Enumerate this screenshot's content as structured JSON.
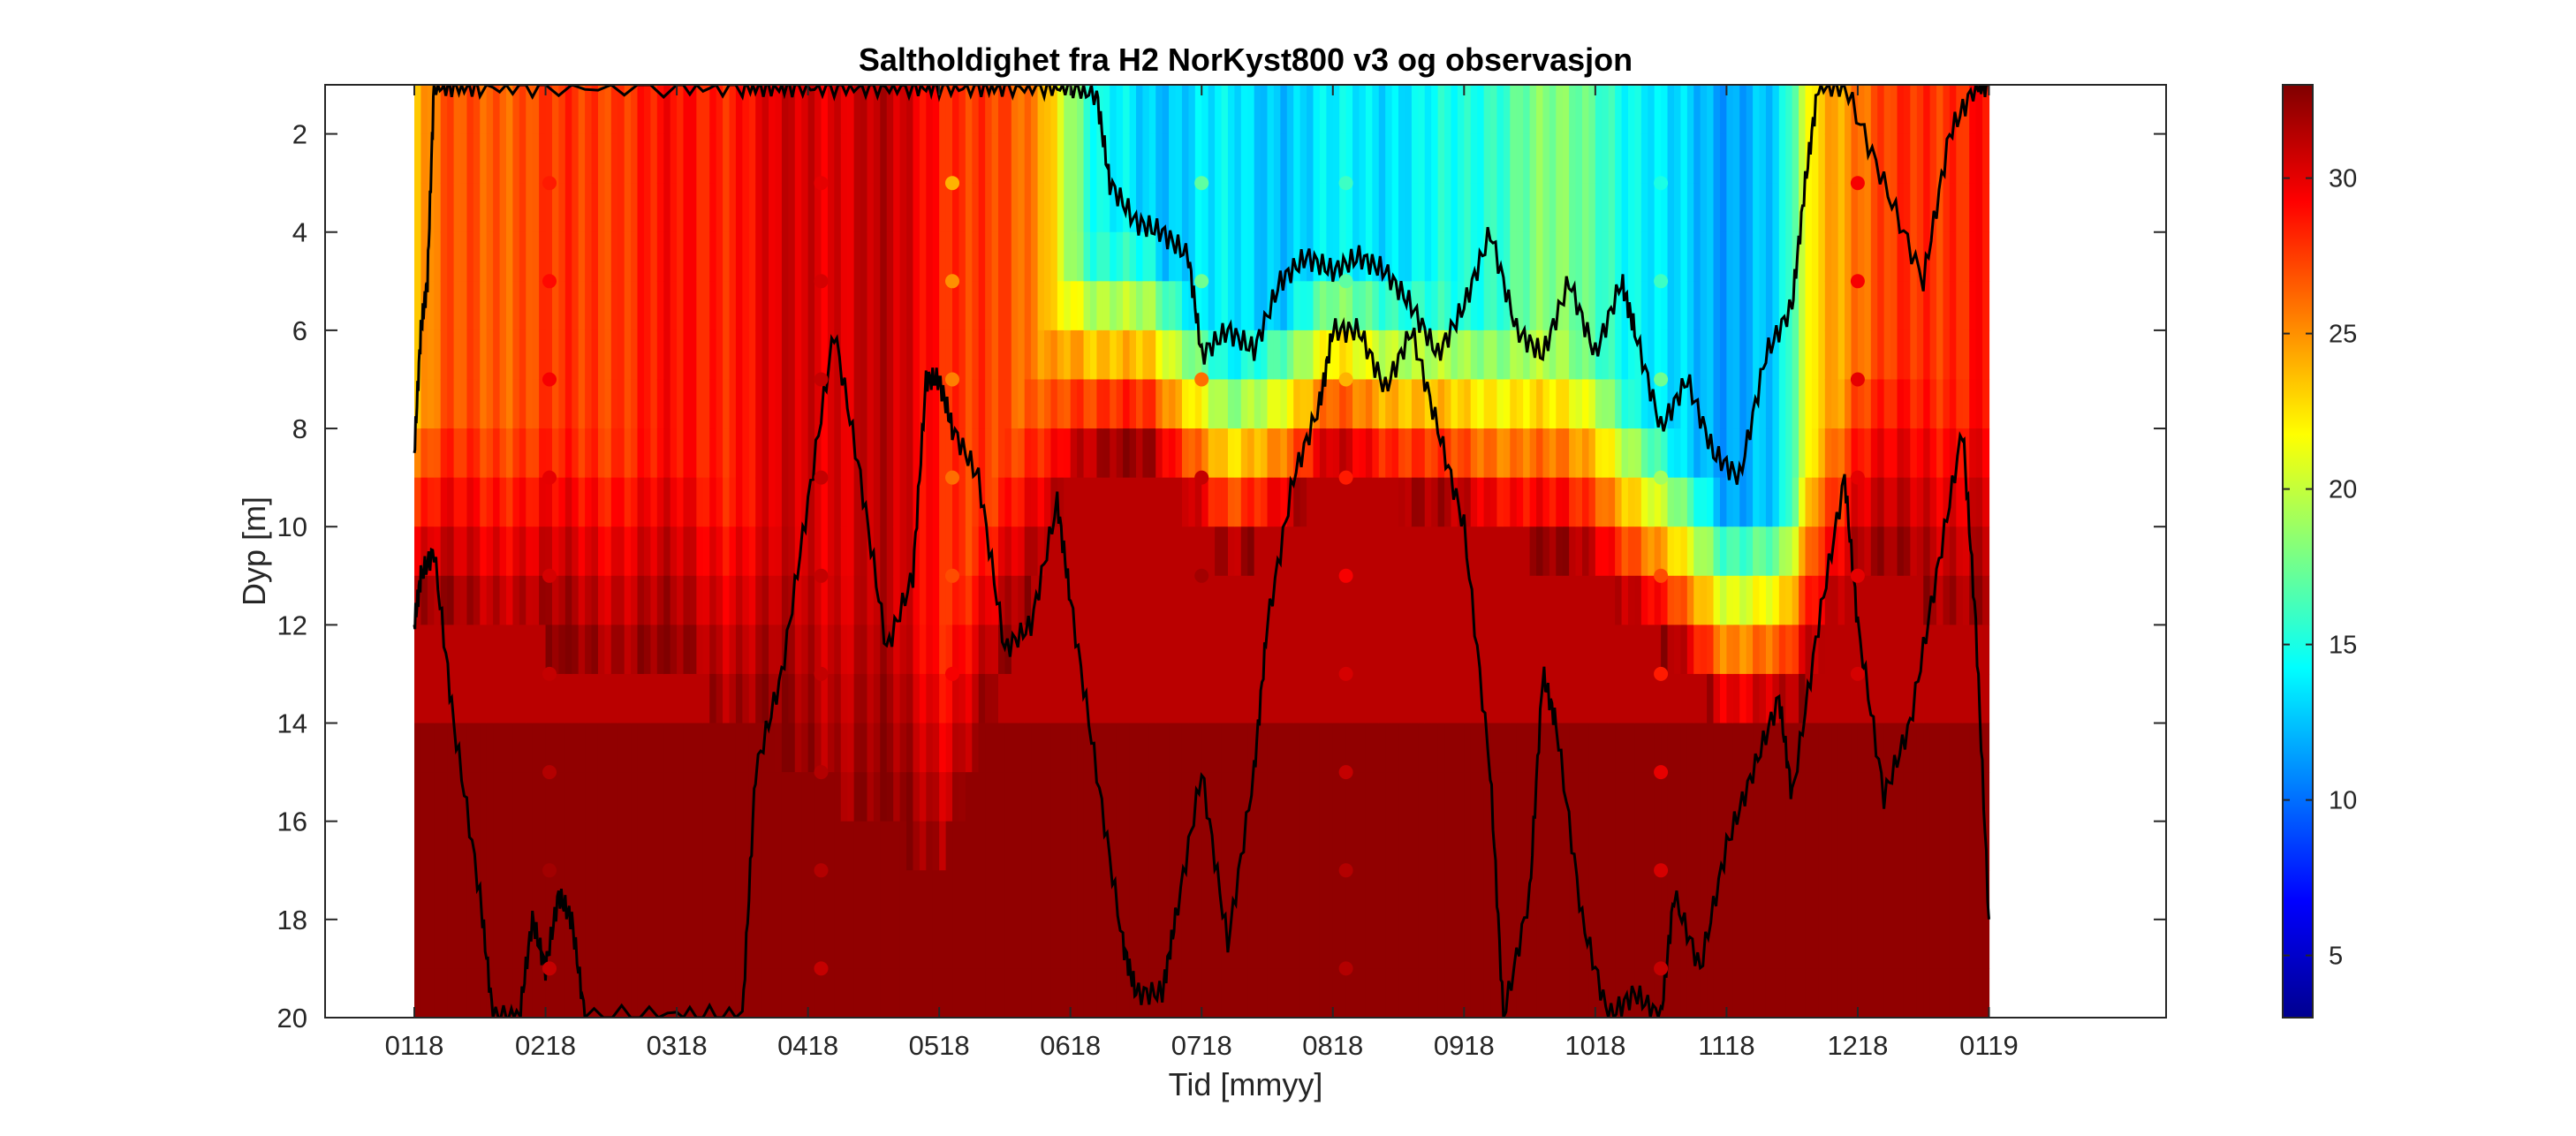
{
  "chart_data": {
    "type": "heatmap",
    "title": "Saltholdighet fra H2 NorKyst800 v3 og observasjon",
    "xlabel": "Tid [mmyy]",
    "ylabel": "Dyp [m]",
    "x_ticks": [
      "0118",
      "0218",
      "0318",
      "0418",
      "0518",
      "0618",
      "0718",
      "0818",
      "0918",
      "1018",
      "1118",
      "1218",
      "0119"
    ],
    "x_range_months": [
      -0.68,
      13.35
    ],
    "data_start_month": 0,
    "data_end_month": 12,
    "ylim": [
      1,
      20
    ],
    "y_reversed": true,
    "y_ticks": [
      2,
      4,
      6,
      8,
      10,
      12,
      14,
      16,
      18,
      20
    ],
    "colormap": "jet",
    "clim": [
      3,
      33
    ],
    "colorbar_ticks": [
      5,
      10,
      15,
      20,
      25,
      30
    ],
    "model_surface_salinity_by_month": [
      {
        "month": 0.0,
        "s": 23
      },
      {
        "month": 0.2,
        "s": 26
      },
      {
        "month": 0.5,
        "s": 27
      },
      {
        "month": 1.0,
        "s": 27
      },
      {
        "month": 1.5,
        "s": 28
      },
      {
        "month": 2.0,
        "s": 28.5
      },
      {
        "month": 2.5,
        "s": 29
      },
      {
        "month": 3.0,
        "s": 30.5
      },
      {
        "month": 3.5,
        "s": 31
      },
      {
        "month": 4.0,
        "s": 29
      },
      {
        "month": 4.4,
        "s": 27
      },
      {
        "month": 4.8,
        "s": 25
      },
      {
        "month": 5.2,
        "s": 14
      },
      {
        "month": 5.6,
        "s": 13
      },
      {
        "month": 6.0,
        "s": 13.5
      },
      {
        "month": 6.5,
        "s": 13
      },
      {
        "month": 7.0,
        "s": 13.5
      },
      {
        "month": 7.5,
        "s": 14
      },
      {
        "month": 8.0,
        "s": 14.5
      },
      {
        "month": 8.5,
        "s": 18
      },
      {
        "month": 9.0,
        "s": 17
      },
      {
        "month": 9.5,
        "s": 13
      },
      {
        "month": 10.0,
        "s": 12
      },
      {
        "month": 10.4,
        "s": 12.5
      },
      {
        "month": 10.7,
        "s": 24
      },
      {
        "month": 11.0,
        "s": 26
      },
      {
        "month": 11.5,
        "s": 28
      },
      {
        "month": 12.0,
        "s": 29
      }
    ],
    "model_bottom_salinity": 32.5,
    "model_salinity_gradient_depth_m": [
      {
        "month": 0.0,
        "d": 9
      },
      {
        "month": 2.0,
        "d": 10
      },
      {
        "month": 4.0,
        "d": 14
      },
      {
        "month": 5.0,
        "d": 6
      },
      {
        "month": 5.6,
        "d": 5.5
      },
      {
        "month": 6.2,
        "d": 8
      },
      {
        "month": 7.0,
        "d": 6
      },
      {
        "month": 8.0,
        "d": 7
      },
      {
        "month": 9.0,
        "d": 8
      },
      {
        "month": 10.0,
        "d": 11
      },
      {
        "month": 10.5,
        "d": 11
      },
      {
        "month": 11.0,
        "d": 8
      },
      {
        "month": 12.0,
        "d": 9
      }
    ],
    "observations": [
      {
        "month": 1.03,
        "depth": 3,
        "salinity": 28.5
      },
      {
        "month": 1.03,
        "depth": 5,
        "salinity": 29
      },
      {
        "month": 1.03,
        "depth": 7,
        "salinity": 29.5
      },
      {
        "month": 1.03,
        "depth": 9,
        "salinity": 30
      },
      {
        "month": 1.03,
        "depth": 11,
        "salinity": 30.5
      },
      {
        "month": 1.03,
        "depth": 13,
        "salinity": 31
      },
      {
        "month": 1.03,
        "depth": 15,
        "salinity": 31.5
      },
      {
        "month": 1.03,
        "depth": 17,
        "salinity": 32
      },
      {
        "month": 1.03,
        "depth": 19,
        "salinity": 31
      },
      {
        "month": 3.1,
        "depth": 3,
        "salinity": 30
      },
      {
        "month": 3.1,
        "depth": 5,
        "salinity": 30.5
      },
      {
        "month": 3.1,
        "depth": 7,
        "salinity": 31
      },
      {
        "month": 3.1,
        "depth": 9,
        "salinity": 31
      },
      {
        "month": 3.1,
        "depth": 11,
        "salinity": 31
      },
      {
        "month": 3.1,
        "depth": 13,
        "salinity": 31
      },
      {
        "month": 3.1,
        "depth": 15,
        "salinity": 31.5
      },
      {
        "month": 3.1,
        "depth": 17,
        "salinity": 31.5
      },
      {
        "month": 3.1,
        "depth": 19,
        "salinity": 31
      },
      {
        "month": 4.1,
        "depth": 3,
        "salinity": 24
      },
      {
        "month": 4.1,
        "depth": 5,
        "salinity": 25
      },
      {
        "month": 4.1,
        "depth": 7,
        "salinity": 25.5
      },
      {
        "month": 4.1,
        "depth": 9,
        "salinity": 26
      },
      {
        "month": 4.1,
        "depth": 11,
        "salinity": 27
      },
      {
        "month": 4.1,
        "depth": 13,
        "salinity": 29.5
      },
      {
        "month": 6.0,
        "depth": 3,
        "salinity": 17
      },
      {
        "month": 6.0,
        "depth": 5,
        "salinity": 17.5
      },
      {
        "month": 6.0,
        "depth": 7,
        "salinity": 26
      },
      {
        "month": 6.0,
        "depth": 9,
        "salinity": 31
      },
      {
        "month": 6.0,
        "depth": 11,
        "salinity": 32
      },
      {
        "month": 7.1,
        "depth": 3,
        "salinity": 16
      },
      {
        "month": 7.1,
        "depth": 5,
        "salinity": 17
      },
      {
        "month": 7.1,
        "depth": 7,
        "salinity": 24
      },
      {
        "month": 7.1,
        "depth": 9,
        "salinity": 28.5
      },
      {
        "month": 7.1,
        "depth": 11,
        "salinity": 29.5
      },
      {
        "month": 7.1,
        "depth": 13,
        "salinity": 30.5
      },
      {
        "month": 7.1,
        "depth": 15,
        "salinity": 31
      },
      {
        "month": 7.1,
        "depth": 17,
        "salinity": 31.5
      },
      {
        "month": 7.1,
        "depth": 19,
        "salinity": 31.5
      },
      {
        "month": 9.5,
        "depth": 3,
        "salinity": 15
      },
      {
        "month": 9.5,
        "depth": 5,
        "salinity": 16
      },
      {
        "month": 9.5,
        "depth": 7,
        "salinity": 17.5
      },
      {
        "month": 9.5,
        "depth": 9,
        "salinity": 19
      },
      {
        "month": 9.5,
        "depth": 11,
        "salinity": 27
      },
      {
        "month": 9.5,
        "depth": 13,
        "salinity": 28.5
      },
      {
        "month": 9.5,
        "depth": 15,
        "salinity": 30
      },
      {
        "month": 9.5,
        "depth": 17,
        "salinity": 30.5
      },
      {
        "month": 9.5,
        "depth": 19,
        "salinity": 31
      },
      {
        "month": 11.0,
        "depth": 3,
        "salinity": 29.5
      },
      {
        "month": 11.0,
        "depth": 5,
        "salinity": 29.5
      },
      {
        "month": 11.0,
        "depth": 7,
        "salinity": 30
      },
      {
        "month": 11.0,
        "depth": 9,
        "salinity": 30
      },
      {
        "month": 11.0,
        "depth": 11,
        "salinity": 30
      },
      {
        "month": 11.0,
        "depth": 13,
        "salinity": 30.5
      }
    ],
    "black_contour_lines": [
      {
        "name": "upper-contour",
        "points": [
          [
            0.0,
            8.5
          ],
          [
            0.05,
            6
          ],
          [
            0.1,
            5
          ],
          [
            0.15,
            1
          ],
          [
            0.3,
            1
          ],
          [
            0.5,
            1
          ],
          [
            1.0,
            1
          ],
          [
            2.0,
            1
          ],
          [
            2.5,
            1
          ],
          [
            2.7,
            1
          ],
          [
            2.9,
            1
          ],
          [
            3.2,
            1
          ],
          [
            3.5,
            1
          ],
          [
            3.8,
            1
          ],
          [
            4.0,
            1
          ],
          [
            4.3,
            1
          ],
          [
            4.5,
            1
          ],
          [
            4.8,
            1
          ],
          [
            5.0,
            1
          ],
          [
            5.2,
            1.2
          ],
          [
            5.3,
            3
          ],
          [
            5.5,
            3.8
          ],
          [
            5.7,
            4
          ],
          [
            5.9,
            4.5
          ],
          [
            6.0,
            6.5
          ],
          [
            6.2,
            6
          ],
          [
            6.4,
            6.4
          ],
          [
            6.6,
            5
          ],
          [
            6.8,
            4.5
          ],
          [
            7.0,
            4.8
          ],
          [
            7.2,
            4.5
          ],
          [
            7.4,
            4.8
          ],
          [
            7.6,
            5.5
          ],
          [
            7.8,
            6.5
          ],
          [
            8.0,
            5.5
          ],
          [
            8.2,
            4
          ],
          [
            8.4,
            6
          ],
          [
            8.6,
            6.5
          ],
          [
            8.8,
            5
          ],
          [
            9.0,
            6.5
          ],
          [
            9.2,
            5
          ],
          [
            9.3,
            6
          ],
          [
            9.5,
            8
          ],
          [
            9.7,
            7
          ],
          [
            9.9,
            8.5
          ],
          [
            10.1,
            9
          ],
          [
            10.3,
            6.5
          ],
          [
            10.5,
            5.5
          ],
          [
            10.6,
            3
          ],
          [
            10.7,
            1
          ],
          [
            10.9,
            1
          ],
          [
            11.2,
            3
          ],
          [
            11.5,
            5
          ],
          [
            11.7,
            2
          ],
          [
            11.9,
            1
          ],
          [
            12.0,
            1
          ]
        ]
      },
      {
        "name": "lower-contour",
        "points": [
          [
            0.0,
            12
          ],
          [
            0.05,
            11
          ],
          [
            0.15,
            10.5
          ],
          [
            0.3,
            14
          ],
          [
            0.5,
            17.5
          ],
          [
            0.6,
            20
          ],
          [
            0.8,
            20
          ],
          [
            0.9,
            18
          ],
          [
            1.0,
            19
          ],
          [
            1.1,
            17.5
          ],
          [
            1.2,
            18
          ],
          [
            1.3,
            20
          ],
          [
            2.0,
            20
          ],
          [
            2.5,
            20
          ],
          [
            2.6,
            15
          ],
          [
            2.8,
            13
          ],
          [
            3.0,
            9.5
          ],
          [
            3.2,
            6
          ],
          [
            3.4,
            9
          ],
          [
            3.6,
            12.5
          ],
          [
            3.8,
            11
          ],
          [
            3.9,
            7
          ],
          [
            4.0,
            7
          ],
          [
            4.1,
            8
          ],
          [
            4.3,
            9
          ],
          [
            4.5,
            12.5
          ],
          [
            4.7,
            12
          ],
          [
            4.9,
            9.5
          ],
          [
            5.0,
            11.5
          ],
          [
            5.2,
            15
          ],
          [
            5.4,
            18.5
          ],
          [
            5.5,
            19.5
          ],
          [
            5.7,
            19.5
          ],
          [
            5.8,
            18
          ],
          [
            6.0,
            15
          ],
          [
            6.2,
            18.5
          ],
          [
            6.4,
            15
          ],
          [
            6.5,
            12
          ],
          [
            6.7,
            9
          ],
          [
            6.9,
            7.5
          ],
          [
            7.0,
            6
          ],
          [
            7.2,
            6
          ],
          [
            7.4,
            7.2
          ],
          [
            7.6,
            6
          ],
          [
            7.8,
            8
          ],
          [
            8.0,
            10
          ],
          [
            8.2,
            15
          ],
          [
            8.3,
            20
          ],
          [
            8.5,
            17.5
          ],
          [
            8.6,
            13
          ],
          [
            8.7,
            14
          ],
          [
            8.9,
            18
          ],
          [
            9.1,
            20
          ],
          [
            9.3,
            19.5
          ],
          [
            9.5,
            20
          ],
          [
            9.6,
            17.5
          ],
          [
            9.8,
            19
          ],
          [
            10.0,
            16.5
          ],
          [
            10.2,
            15
          ],
          [
            10.4,
            13.5
          ],
          [
            10.5,
            15.5
          ],
          [
            10.7,
            12
          ],
          [
            10.9,
            9
          ],
          [
            11.0,
            12
          ],
          [
            11.2,
            15.5
          ],
          [
            11.4,
            14
          ],
          [
            11.6,
            11
          ],
          [
            11.8,
            8
          ],
          [
            11.9,
            12
          ],
          [
            12.0,
            18
          ]
        ]
      }
    ]
  }
}
